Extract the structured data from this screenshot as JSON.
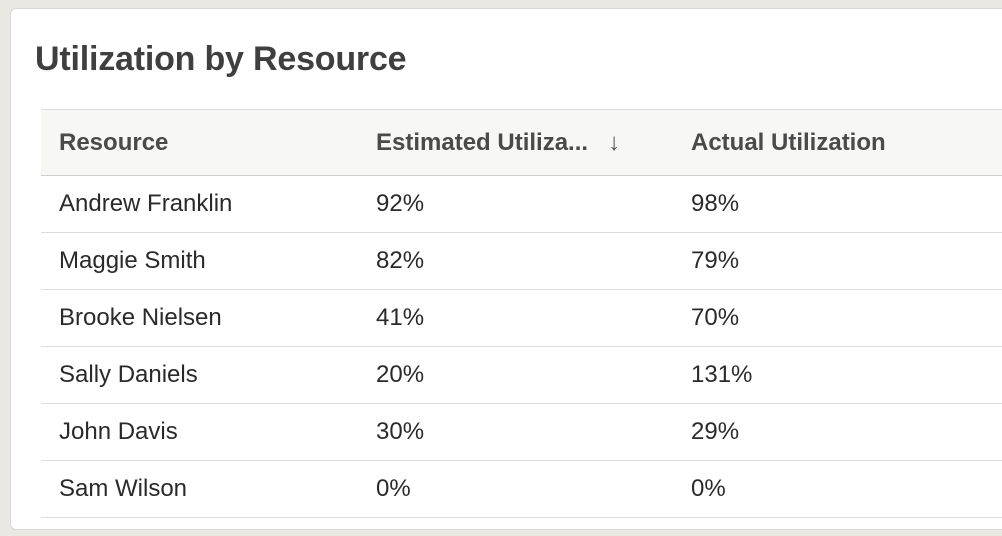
{
  "card": {
    "title": "Utilization by Resource"
  },
  "table": {
    "headers": {
      "resource": "Resource",
      "estimated": "Estimated Utiliza...",
      "actual": "Actual Utilization"
    },
    "sort_icon": "arrow-down-icon",
    "rows": [
      {
        "resource": "Andrew Franklin",
        "estimated": "92%",
        "actual": "98%"
      },
      {
        "resource": "Maggie Smith",
        "estimated": "82%",
        "actual": "79%"
      },
      {
        "resource": "Brooke Nielsen",
        "estimated": "41%",
        "actual": "70%"
      },
      {
        "resource": "Sally Daniels",
        "estimated": "20%",
        "actual": "131%"
      },
      {
        "resource": "John Davis",
        "estimated": "30%",
        "actual": "29%"
      },
      {
        "resource": "Sam Wilson",
        "estimated": "0%",
        "actual": "0%"
      }
    ]
  }
}
